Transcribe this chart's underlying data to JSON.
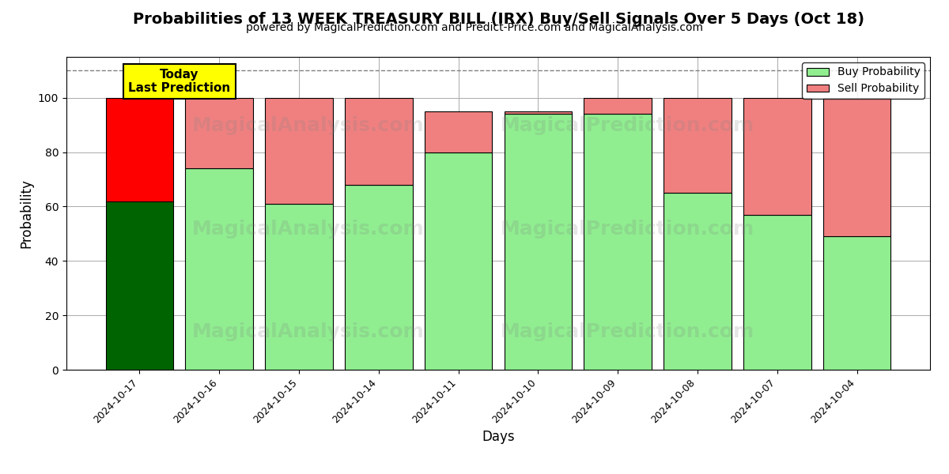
{
  "title": "Probabilities of 13 WEEK TREASURY BILL (IRX) Buy/Sell Signals Over 5 Days (Oct 18)",
  "subtitle": "powered by MagicalPrediction.com and Predict-Price.com and MagicalAnalysis.com",
  "xlabel": "Days",
  "ylabel": "Probability",
  "dates": [
    "2024-10-17",
    "2024-10-16",
    "2024-10-15",
    "2024-10-14",
    "2024-10-11",
    "2024-10-10",
    "2024-10-09",
    "2024-10-08",
    "2024-10-07",
    "2024-10-04"
  ],
  "buy_values": [
    62,
    74,
    61,
    68,
    80,
    94,
    94,
    65,
    57,
    49
  ],
  "sell_values": [
    38,
    26,
    39,
    32,
    15,
    1,
    6,
    35,
    43,
    51
  ],
  "buy_color_normal": "#90EE90",
  "sell_color_normal": "#F08080",
  "buy_color_dark": "#006400",
  "sell_color_red": "#FF0000",
  "bar_edge_color": "#000000",
  "bar_edge_width": 0.8,
  "grid_color": "#aaaaaa",
  "ylim": [
    0,
    115
  ],
  "dashed_line_y": 110,
  "watermark1": "MagicalAnalysis.com",
  "watermark2": "MagicalPrediction.com",
  "legend_buy_color": "#90EE90",
  "legend_sell_color": "#F08080",
  "fig_width": 12,
  "fig_height": 6,
  "today_box_color": "#FFFF00",
  "today_text": "Today\nLast Prediction",
  "today_fontsize": 11,
  "title_fontsize": 14,
  "subtitle_fontsize": 10,
  "axis_label_fontsize": 12,
  "bar_width": 0.85
}
